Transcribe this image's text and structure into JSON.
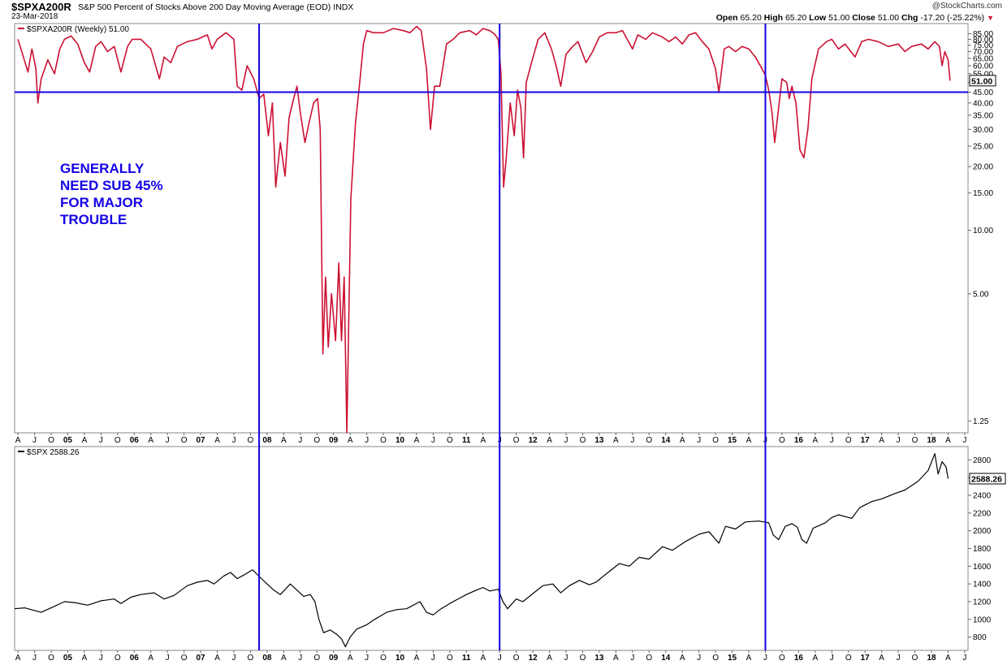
{
  "header": {
    "symbol": "$SPXA200R",
    "description": "S&P 500 Percent of Stocks Above 200 Day Moving Average (EOD)",
    "exchange": "INDX",
    "date": "23-Mar-2018",
    "credit": "@StockCharts.com",
    "quote": {
      "open_label": "Open",
      "open": "65.20",
      "high_label": "High",
      "high": "65.20",
      "low_label": "Low",
      "low": "51.00",
      "close_label": "Close",
      "close": "51.00",
      "chg_label": "Chg",
      "chg": "-17.20 (-25.22%)"
    }
  },
  "annotation": [
    "GENERALLY",
    "NEED SUB 45%",
    "FOR MAJOR",
    "TROUBLE"
  ],
  "colors": {
    "breadth_line": "#cc1133",
    "price_line": "#000000",
    "guide_lines": "#1400e6",
    "annotation": "#1400e6"
  },
  "chart_data": [
    {
      "type": "line",
      "scale": "log",
      "legend_label": "$SPXA200R (Weekly) 51.00",
      "legend_position": "top-left",
      "ylim": [
        1.1,
        95
      ],
      "y_ticks": [
        "85.00",
        "80.00",
        "75.00",
        "70.00",
        "65.00",
        "60.00",
        "55.00",
        "50.00",
        "45.00",
        "40.00",
        "35.00",
        "30.00",
        "25.00",
        "20.00",
        "15.00",
        "10.00",
        "5.00",
        "1.25"
      ],
      "last_value_label": "51.00",
      "horizontal_line": 45,
      "x_range": [
        2004.2,
        2018.55
      ],
      "points": [
        [
          2004.25,
          80
        ],
        [
          2004.32,
          68
        ],
        [
          2004.4,
          56
        ],
        [
          2004.46,
          72
        ],
        [
          2004.52,
          58
        ],
        [
          2004.55,
          40
        ],
        [
          2004.6,
          52
        ],
        [
          2004.7,
          64
        ],
        [
          2004.8,
          55
        ],
        [
          2004.88,
          72
        ],
        [
          2004.95,
          80
        ],
        [
          2005.05,
          83
        ],
        [
          2005.15,
          76
        ],
        [
          2005.25,
          62
        ],
        [
          2005.33,
          56
        ],
        [
          2005.42,
          74
        ],
        [
          2005.5,
          78
        ],
        [
          2005.6,
          70
        ],
        [
          2005.7,
          74
        ],
        [
          2005.8,
          56
        ],
        [
          2005.9,
          74
        ],
        [
          2005.97,
          80
        ],
        [
          2006.1,
          80
        ],
        [
          2006.25,
          72
        ],
        [
          2006.38,
          52
        ],
        [
          2006.45,
          66
        ],
        [
          2006.55,
          62
        ],
        [
          2006.65,
          74
        ],
        [
          2006.8,
          78
        ],
        [
          2006.95,
          80
        ],
        [
          2007.1,
          84
        ],
        [
          2007.17,
          72
        ],
        [
          2007.25,
          80
        ],
        [
          2007.38,
          86
        ],
        [
          2007.5,
          80
        ],
        [
          2007.55,
          48
        ],
        [
          2007.62,
          46
        ],
        [
          2007.7,
          60
        ],
        [
          2007.8,
          52
        ],
        [
          2007.88,
          42
        ],
        [
          2007.95,
          44
        ],
        [
          2008.02,
          28
        ],
        [
          2008.08,
          40
        ],
        [
          2008.13,
          16
        ],
        [
          2008.2,
          26
        ],
        [
          2008.27,
          18
        ],
        [
          2008.33,
          34
        ],
        [
          2008.4,
          42
        ],
        [
          2008.45,
          48
        ],
        [
          2008.5,
          36
        ],
        [
          2008.57,
          26
        ],
        [
          2008.63,
          32
        ],
        [
          2008.7,
          40
        ],
        [
          2008.76,
          42
        ],
        [
          2008.8,
          30
        ],
        [
          2008.84,
          2.6
        ],
        [
          2008.88,
          6
        ],
        [
          2008.92,
          2.8
        ],
        [
          2008.97,
          5
        ],
        [
          2009.03,
          3
        ],
        [
          2009.08,
          7
        ],
        [
          2009.12,
          3
        ],
        [
          2009.16,
          6
        ],
        [
          2009.2,
          1.1
        ],
        [
          2009.26,
          14
        ],
        [
          2009.33,
          32
        ],
        [
          2009.4,
          52
        ],
        [
          2009.45,
          76
        ],
        [
          2009.5,
          88
        ],
        [
          2009.6,
          86
        ],
        [
          2009.75,
          86
        ],
        [
          2009.9,
          90
        ],
        [
          2010.05,
          88
        ],
        [
          2010.15,
          86
        ],
        [
          2010.25,
          92
        ],
        [
          2010.32,
          88
        ],
        [
          2010.4,
          58
        ],
        [
          2010.46,
          30
        ],
        [
          2010.52,
          48
        ],
        [
          2010.6,
          48
        ],
        [
          2010.7,
          76
        ],
        [
          2010.8,
          80
        ],
        [
          2010.9,
          86
        ],
        [
          2011.05,
          88
        ],
        [
          2011.15,
          84
        ],
        [
          2011.25,
          90
        ],
        [
          2011.35,
          88
        ],
        [
          2011.42,
          85
        ],
        [
          2011.48,
          80
        ],
        [
          2011.52,
          55
        ],
        [
          2011.56,
          16
        ],
        [
          2011.6,
          22
        ],
        [
          2011.66,
          40
        ],
        [
          2011.72,
          28
        ],
        [
          2011.77,
          46
        ],
        [
          2011.82,
          38
        ],
        [
          2011.86,
          22
        ],
        [
          2011.9,
          50
        ],
        [
          2011.98,
          62
        ],
        [
          2012.08,
          80
        ],
        [
          2012.18,
          86
        ],
        [
          2012.28,
          72
        ],
        [
          2012.35,
          60
        ],
        [
          2012.42,
          48
        ],
        [
          2012.5,
          68
        ],
        [
          2012.6,
          74
        ],
        [
          2012.68,
          78
        ],
        [
          2012.8,
          62
        ],
        [
          2012.9,
          70
        ],
        [
          2013.0,
          82
        ],
        [
          2013.12,
          86
        ],
        [
          2013.25,
          86
        ],
        [
          2013.35,
          88
        ],
        [
          2013.42,
          80
        ],
        [
          2013.5,
          72
        ],
        [
          2013.58,
          84
        ],
        [
          2013.7,
          80
        ],
        [
          2013.8,
          86
        ],
        [
          2013.95,
          82
        ],
        [
          2014.05,
          78
        ],
        [
          2014.15,
          82
        ],
        [
          2014.25,
          76
        ],
        [
          2014.35,
          84
        ],
        [
          2014.45,
          86
        ],
        [
          2014.55,
          78
        ],
        [
          2014.65,
          72
        ],
        [
          2014.75,
          58
        ],
        [
          2014.8,
          45
        ],
        [
          2014.88,
          72
        ],
        [
          2014.95,
          74
        ],
        [
          2015.05,
          70
        ],
        [
          2015.15,
          74
        ],
        [
          2015.25,
          72
        ],
        [
          2015.35,
          66
        ],
        [
          2015.45,
          58
        ],
        [
          2015.5,
          54
        ],
        [
          2015.55,
          46
        ],
        [
          2015.6,
          36
        ],
        [
          2015.64,
          26
        ],
        [
          2015.7,
          38
        ],
        [
          2015.75,
          52
        ],
        [
          2015.82,
          50
        ],
        [
          2015.86,
          42
        ],
        [
          2015.9,
          48
        ],
        [
          2015.96,
          40
        ],
        [
          2016.02,
          24
        ],
        [
          2016.08,
          22
        ],
        [
          2016.14,
          30
        ],
        [
          2016.2,
          52
        ],
        [
          2016.3,
          72
        ],
        [
          2016.42,
          78
        ],
        [
          2016.5,
          80
        ],
        [
          2016.6,
          72
        ],
        [
          2016.7,
          76
        ],
        [
          2016.85,
          66
        ],
        [
          2016.95,
          78
        ],
        [
          2017.05,
          80
        ],
        [
          2017.2,
          78
        ],
        [
          2017.35,
          74
        ],
        [
          2017.5,
          76
        ],
        [
          2017.6,
          70
        ],
        [
          2017.7,
          74
        ],
        [
          2017.85,
          76
        ],
        [
          2017.95,
          72
        ],
        [
          2018.05,
          78
        ],
        [
          2018.12,
          74
        ],
        [
          2018.16,
          60
        ],
        [
          2018.2,
          70
        ],
        [
          2018.25,
          64
        ],
        [
          2018.28,
          51
        ]
      ]
    },
    {
      "type": "line",
      "scale": "linear",
      "legend_label": "$SPX 2588.26",
      "legend_position": "top-left",
      "ylim": [
        650,
        2950
      ],
      "y_ticks": [
        "2800",
        "2600",
        "2400",
        "2200",
        "2000",
        "1800",
        "1600",
        "1400",
        "1200",
        "1000",
        "800"
      ],
      "last_value_label": "2588.26",
      "x_range": [
        2004.2,
        2018.55
      ],
      "points": [
        [
          2004.2,
          1120
        ],
        [
          2004.35,
          1130
        ],
        [
          2004.5,
          1100
        ],
        [
          2004.6,
          1080
        ],
        [
          2004.75,
          1130
        ],
        [
          2004.95,
          1200
        ],
        [
          2005.1,
          1190
        ],
        [
          2005.3,
          1160
        ],
        [
          2005.5,
          1210
        ],
        [
          2005.7,
          1230
        ],
        [
          2005.8,
          1180
        ],
        [
          2005.95,
          1250
        ],
        [
          2006.1,
          1280
        ],
        [
          2006.3,
          1300
        ],
        [
          2006.45,
          1230
        ],
        [
          2006.6,
          1270
        ],
        [
          2006.8,
          1380
        ],
        [
          2006.95,
          1420
        ],
        [
          2007.1,
          1440
        ],
        [
          2007.2,
          1400
        ],
        [
          2007.35,
          1490
        ],
        [
          2007.45,
          1530
        ],
        [
          2007.55,
          1460
        ],
        [
          2007.65,
          1500
        ],
        [
          2007.78,
          1560
        ],
        [
          2007.9,
          1470
        ],
        [
          2008.0,
          1400
        ],
        [
          2008.1,
          1330
        ],
        [
          2008.2,
          1280
        ],
        [
          2008.35,
          1400
        ],
        [
          2008.45,
          1330
        ],
        [
          2008.55,
          1260
        ],
        [
          2008.65,
          1280
        ],
        [
          2008.72,
          1200
        ],
        [
          2008.78,
          1000
        ],
        [
          2008.85,
          850
        ],
        [
          2008.95,
          880
        ],
        [
          2009.05,
          830
        ],
        [
          2009.12,
          780
        ],
        [
          2009.18,
          690
        ],
        [
          2009.25,
          800
        ],
        [
          2009.35,
          890
        ],
        [
          2009.5,
          940
        ],
        [
          2009.62,
          1000
        ],
        [
          2009.8,
          1080
        ],
        [
          2009.95,
          1110
        ],
        [
          2010.1,
          1120
        ],
        [
          2010.3,
          1200
        ],
        [
          2010.4,
          1080
        ],
        [
          2010.5,
          1050
        ],
        [
          2010.6,
          1110
        ],
        [
          2010.75,
          1180
        ],
        [
          2010.9,
          1240
        ],
        [
          2011.0,
          1280
        ],
        [
          2011.15,
          1330
        ],
        [
          2011.25,
          1360
        ],
        [
          2011.35,
          1320
        ],
        [
          2011.48,
          1340
        ],
        [
          2011.55,
          1200
        ],
        [
          2011.62,
          1120
        ],
        [
          2011.75,
          1230
        ],
        [
          2011.85,
          1200
        ],
        [
          2011.95,
          1260
        ],
        [
          2012.15,
          1380
        ],
        [
          2012.3,
          1400
        ],
        [
          2012.42,
          1300
        ],
        [
          2012.55,
          1380
        ],
        [
          2012.7,
          1440
        ],
        [
          2012.85,
          1390
        ],
        [
          2012.95,
          1420
        ],
        [
          2013.1,
          1510
        ],
        [
          2013.3,
          1630
        ],
        [
          2013.45,
          1600
        ],
        [
          2013.6,
          1700
        ],
        [
          2013.75,
          1680
        ],
        [
          2013.95,
          1820
        ],
        [
          2014.1,
          1780
        ],
        [
          2014.3,
          1880
        ],
        [
          2014.5,
          1960
        ],
        [
          2014.65,
          1990
        ],
        [
          2014.8,
          1860
        ],
        [
          2014.9,
          2050
        ],
        [
          2015.05,
          2020
        ],
        [
          2015.2,
          2100
        ],
        [
          2015.4,
          2110
        ],
        [
          2015.55,
          2090
        ],
        [
          2015.62,
          1950
        ],
        [
          2015.7,
          1900
        ],
        [
          2015.8,
          2050
        ],
        [
          2015.9,
          2080
        ],
        [
          2015.98,
          2040
        ],
        [
          2016.05,
          1900
        ],
        [
          2016.12,
          1860
        ],
        [
          2016.22,
          2030
        ],
        [
          2016.4,
          2090
        ],
        [
          2016.5,
          2150
        ],
        [
          2016.6,
          2180
        ],
        [
          2016.8,
          2140
        ],
        [
          2016.92,
          2260
        ],
        [
          2017.1,
          2330
        ],
        [
          2017.25,
          2360
        ],
        [
          2017.45,
          2420
        ],
        [
          2017.6,
          2460
        ],
        [
          2017.8,
          2560
        ],
        [
          2017.95,
          2680
        ],
        [
          2018.05,
          2870
        ],
        [
          2018.1,
          2640
        ],
        [
          2018.16,
          2780
        ],
        [
          2018.22,
          2720
        ],
        [
          2018.25,
          2588
        ]
      ]
    }
  ],
  "x_axis_labels": [
    {
      "label": "A",
      "x": 2004.25
    },
    {
      "label": "J",
      "x": 2004.5
    },
    {
      "label": "O",
      "x": 2004.75
    },
    {
      "label": "05",
      "x": 2005.0
    },
    {
      "label": "A",
      "x": 2005.25
    },
    {
      "label": "J",
      "x": 2005.5
    },
    {
      "label": "O",
      "x": 2005.75
    },
    {
      "label": "06",
      "x": 2006.0
    },
    {
      "label": "A",
      "x": 2006.25
    },
    {
      "label": "J",
      "x": 2006.5
    },
    {
      "label": "O",
      "x": 2006.75
    },
    {
      "label": "07",
      "x": 2007.0
    },
    {
      "label": "A",
      "x": 2007.25
    },
    {
      "label": "J",
      "x": 2007.5
    },
    {
      "label": "O",
      "x": 2007.75
    },
    {
      "label": "08",
      "x": 2008.0
    },
    {
      "label": "A",
      "x": 2008.25
    },
    {
      "label": "J",
      "x": 2008.5
    },
    {
      "label": "O",
      "x": 2008.75
    },
    {
      "label": "09",
      "x": 2009.0
    },
    {
      "label": "A",
      "x": 2009.25
    },
    {
      "label": "J",
      "x": 2009.5
    },
    {
      "label": "O",
      "x": 2009.75
    },
    {
      "label": "10",
      "x": 2010.0
    },
    {
      "label": "A",
      "x": 2010.25
    },
    {
      "label": "J",
      "x": 2010.5
    },
    {
      "label": "O",
      "x": 2010.75
    },
    {
      "label": "11",
      "x": 2011.0
    },
    {
      "label": "A",
      "x": 2011.25
    },
    {
      "label": "J",
      "x": 2011.5
    },
    {
      "label": "O",
      "x": 2011.75
    },
    {
      "label": "12",
      "x": 2012.0
    },
    {
      "label": "A",
      "x": 2012.25
    },
    {
      "label": "J",
      "x": 2012.5
    },
    {
      "label": "O",
      "x": 2012.75
    },
    {
      "label": "13",
      "x": 2013.0
    },
    {
      "label": "A",
      "x": 2013.25
    },
    {
      "label": "J",
      "x": 2013.5
    },
    {
      "label": "O",
      "x": 2013.75
    },
    {
      "label": "14",
      "x": 2014.0
    },
    {
      "label": "A",
      "x": 2014.25
    },
    {
      "label": "J",
      "x": 2014.5
    },
    {
      "label": "O",
      "x": 2014.75
    },
    {
      "label": "15",
      "x": 2015.0
    },
    {
      "label": "A",
      "x": 2015.25
    },
    {
      "label": "J",
      "x": 2015.5
    },
    {
      "label": "O",
      "x": 2015.75
    },
    {
      "label": "16",
      "x": 2016.0
    },
    {
      "label": "A",
      "x": 2016.25
    },
    {
      "label": "J",
      "x": 2016.5
    },
    {
      "label": "O",
      "x": 2016.75
    },
    {
      "label": "17",
      "x": 2017.0
    },
    {
      "label": "A",
      "x": 2017.25
    },
    {
      "label": "J",
      "x": 2017.5
    },
    {
      "label": "O",
      "x": 2017.75
    },
    {
      "label": "18",
      "x": 2018.0
    },
    {
      "label": "A",
      "x": 2018.25
    },
    {
      "label": "J",
      "x": 2018.5
    }
  ],
  "vertical_lines": [
    2007.88,
    2011.5,
    2015.5
  ]
}
